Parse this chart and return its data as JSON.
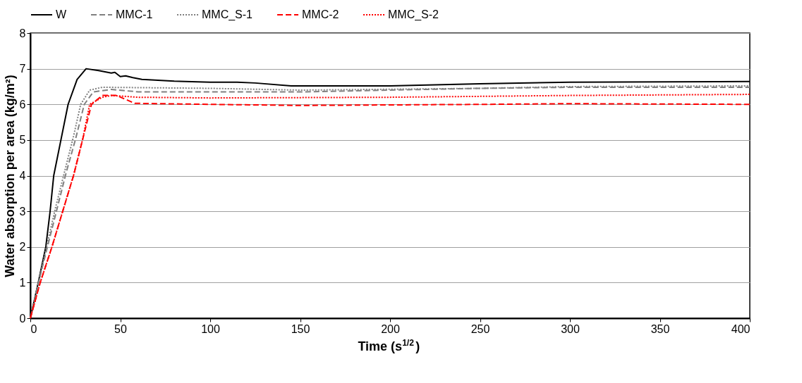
{
  "chart_data": {
    "type": "line",
    "xlabel": "Time (s$^{1/2}$)",
    "ylabel": "Water absorption per area (kg/m²)",
    "xlim": [
      0,
      400
    ],
    "ylim": [
      0,
      8
    ],
    "xticks": [
      0,
      50,
      100,
      150,
      200,
      250,
      300,
      350,
      400
    ],
    "yticks": [
      0,
      1,
      2,
      3,
      4,
      5,
      6,
      7,
      8
    ],
    "grid": "y",
    "legend": "top",
    "marker": "none",
    "series": [
      {
        "name": "W",
        "color": "#000000",
        "line_style": "solid",
        "x": [
          0,
          4.4,
          8.6,
          11,
          13,
          17,
          21,
          26,
          31,
          38,
          45,
          47,
          50,
          53,
          57,
          62,
          80,
          100,
          115,
          125,
          145,
          200,
          250,
          300,
          400
        ],
        "values": [
          0,
          1,
          2,
          3,
          4,
          5,
          6,
          6.7,
          7.0,
          6.95,
          6.88,
          6.9,
          6.78,
          6.8,
          6.75,
          6.7,
          6.65,
          6.62,
          6.62,
          6.6,
          6.52,
          6.52,
          6.58,
          6.62,
          6.64
        ]
      },
      {
        "name": "MMC-1",
        "color": "#808080",
        "line_style": "dashed",
        "x": [
          0,
          5,
          10,
          15,
          20,
          25,
          30,
          35,
          45,
          60,
          120,
          150,
          250,
          300,
          400
        ],
        "values": [
          0,
          1.1,
          2.1,
          3.1,
          4.1,
          5.0,
          6.0,
          6.35,
          6.42,
          6.35,
          6.35,
          6.35,
          6.45,
          6.48,
          6.48
        ]
      },
      {
        "name": "MMC_S-1",
        "color": "#808080",
        "line_style": "dotted",
        "x": [
          0,
          5,
          9,
          14,
          19,
          24,
          28,
          33,
          40,
          100,
          150,
          250,
          300,
          400
        ],
        "values": [
          0,
          1.1,
          2,
          3.1,
          4.1,
          5.1,
          6.0,
          6.4,
          6.48,
          6.45,
          6.4,
          6.45,
          6.5,
          6.52
        ]
      },
      {
        "name": "MMC-2",
        "color": "#ff0000",
        "line_style": "dashed",
        "x": [
          0,
          5.5,
          12,
          18,
          24,
          29,
          34,
          40,
          48,
          58,
          100,
          150,
          250,
          300,
          400
        ],
        "values": [
          0,
          1,
          2,
          3,
          4,
          5,
          6,
          6.25,
          6.25,
          6.03,
          6.0,
          5.97,
          6.0,
          6.02,
          6.0
        ]
      },
      {
        "name": "MMC_S-2",
        "color": "#ff0000",
        "line_style": "dotted",
        "x": [
          0,
          5.5,
          12,
          18,
          24,
          29,
          33,
          40,
          45,
          60,
          100,
          200,
          300,
          400
        ],
        "values": [
          0,
          1,
          2,
          3,
          4,
          5,
          6,
          6.2,
          6.25,
          6.2,
          6.18,
          6.2,
          6.25,
          6.28
        ]
      }
    ]
  }
}
